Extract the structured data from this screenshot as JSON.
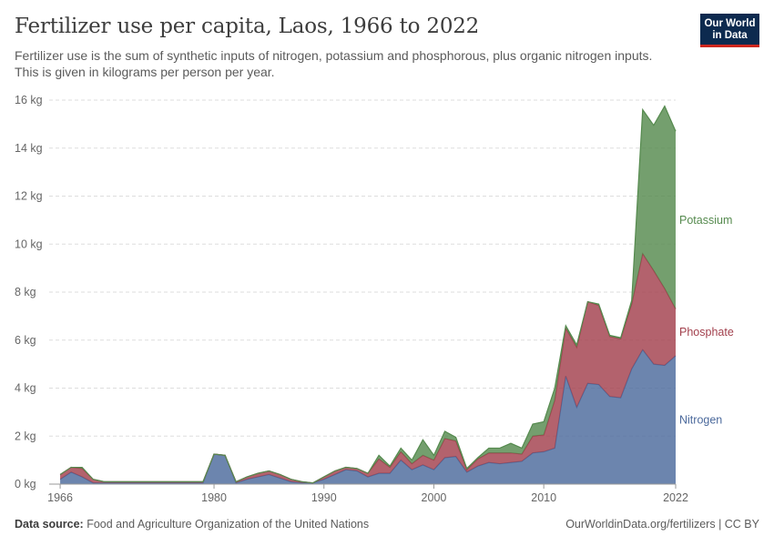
{
  "header": {
    "title": "Fertilizer use per capita, Laos, 1966 to 2022",
    "subtitle": "Fertilizer use is the sum of synthetic inputs of nitrogen, potassium and phosphorous, plus organic nitrogen inputs. This is given in kilograms per person per year."
  },
  "logo": {
    "line1": "Our World",
    "line2": "in Data",
    "bg": "#0d2a4f",
    "accent": "#ce261e"
  },
  "footer": {
    "source_label": "Data source:",
    "source_text": "Food and Agriculture Organization of the United Nations",
    "right_text": "OurWorldinData.org/fertilizers | CC BY"
  },
  "chart_data": {
    "type": "area",
    "stacked": true,
    "x": [
      1966,
      1967,
      1968,
      1969,
      1970,
      1971,
      1972,
      1973,
      1974,
      1975,
      1976,
      1977,
      1978,
      1979,
      1980,
      1981,
      1982,
      1983,
      1984,
      1985,
      1986,
      1987,
      1988,
      1989,
      1990,
      1991,
      1992,
      1993,
      1994,
      1995,
      1996,
      1997,
      1998,
      1999,
      2000,
      2001,
      2002,
      2003,
      2004,
      2005,
      2006,
      2007,
      2008,
      2009,
      2010,
      2011,
      2012,
      2013,
      2014,
      2015,
      2016,
      2017,
      2018,
      2019,
      2020,
      2021,
      2022
    ],
    "xlim": [
      1965,
      2022
    ],
    "ylim": [
      0,
      16
    ],
    "y_ticks": [
      0,
      2,
      4,
      6,
      8,
      10,
      12,
      14,
      16
    ],
    "y_tick_labels": [
      "0 kg",
      "2 kg",
      "4 kg",
      "6 kg",
      "8 kg",
      "10 kg",
      "12 kg",
      "14 kg",
      "16 kg"
    ],
    "x_ticks": [
      1966,
      1980,
      1990,
      2000,
      2010,
      2022
    ],
    "x_tick_labels": [
      "1966",
      "1980",
      "1990",
      "2000",
      "2010",
      "2022"
    ],
    "grid": "horizontal-dashed",
    "legend": "inline-right",
    "series": [
      {
        "name": "Nitrogen",
        "color": "#4c6a9c",
        "values": [
          0.2,
          0.5,
          0.3,
          0.05,
          0.05,
          0.05,
          0.05,
          0.05,
          0.05,
          0.05,
          0.05,
          0.05,
          0.05,
          0.05,
          1.25,
          1.2,
          0.05,
          0.2,
          0.3,
          0.4,
          0.25,
          0.1,
          0.05,
          0.05,
          0.2,
          0.4,
          0.6,
          0.55,
          0.3,
          0.45,
          0.45,
          1.0,
          0.6,
          0.8,
          0.6,
          1.1,
          1.15,
          0.5,
          0.75,
          0.9,
          0.85,
          0.9,
          0.95,
          1.3,
          1.35,
          1.5,
          4.5,
          3.2,
          4.2,
          4.15,
          3.65,
          3.6,
          4.8,
          5.6,
          5.0,
          4.95,
          5.35
        ]
      },
      {
        "name": "Phosphate",
        "color": "#a2404d",
        "values": [
          0.2,
          0.2,
          0.35,
          0.15,
          0.05,
          0.05,
          0.05,
          0.05,
          0.05,
          0.05,
          0.05,
          0.05,
          0.05,
          0.05,
          0.0,
          0.0,
          0.05,
          0.1,
          0.15,
          0.15,
          0.15,
          0.1,
          0.05,
          0.0,
          0.1,
          0.15,
          0.1,
          0.1,
          0.15,
          0.6,
          0.25,
          0.35,
          0.25,
          0.4,
          0.4,
          0.8,
          0.65,
          0.1,
          0.3,
          0.4,
          0.45,
          0.4,
          0.3,
          0.7,
          0.7,
          2.0,
          2.0,
          2.5,
          3.4,
          3.3,
          2.5,
          2.45,
          2.7,
          4.0,
          3.9,
          3.2,
          1.95
        ]
      },
      {
        "name": "Potassium",
        "color": "#558a4e",
        "values": [
          0.0,
          0.0,
          0.05,
          0.0,
          0.0,
          0.0,
          0.0,
          0.0,
          0.0,
          0.0,
          0.0,
          0.0,
          0.0,
          0.0,
          0.0,
          0.0,
          0.0,
          0.0,
          0.0,
          0.0,
          0.0,
          0.0,
          0.0,
          0.0,
          0.0,
          0.0,
          0.0,
          0.0,
          0.0,
          0.15,
          0.05,
          0.15,
          0.15,
          0.65,
          0.2,
          0.3,
          0.15,
          0.05,
          0.05,
          0.2,
          0.2,
          0.4,
          0.25,
          0.5,
          0.55,
          0.5,
          0.1,
          0.1,
          0.0,
          0.05,
          0.05,
          0.05,
          0.15,
          6.0,
          6.05,
          7.6,
          7.4
        ]
      }
    ]
  }
}
